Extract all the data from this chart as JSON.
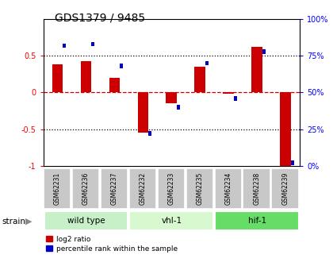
{
  "title": "GDS1379 / 9485",
  "samples": [
    "GSM62231",
    "GSM62236",
    "GSM62237",
    "GSM62232",
    "GSM62233",
    "GSM62235",
    "GSM62234",
    "GSM62238",
    "GSM62239"
  ],
  "log2_ratio": [
    0.38,
    0.43,
    0.2,
    -0.55,
    -0.15,
    0.35,
    -0.02,
    0.62,
    -1.0
  ],
  "percentile_rank": [
    82,
    83,
    68,
    22,
    40,
    70,
    46,
    78,
    2
  ],
  "groups": [
    {
      "label": "wild type",
      "start": 0,
      "end": 3,
      "color": "#c8f0c8"
    },
    {
      "label": "vhl-1",
      "start": 3,
      "end": 6,
      "color": "#d8f8d0"
    },
    {
      "label": "hif-1",
      "start": 6,
      "end": 9,
      "color": "#66dd66"
    }
  ],
  "ylim_left": [
    -1,
    1
  ],
  "bar_color_red": "#cc0000",
  "bar_color_blue": "#0000cc",
  "hline_color": "#cc0000",
  "dotted_color": "#000000",
  "red_bar_width": 0.38,
  "blue_bar_width": 0.12,
  "blue_bar_height": 0.06,
  "label_gray": "#c8c8c8",
  "spine_color": "#000000"
}
